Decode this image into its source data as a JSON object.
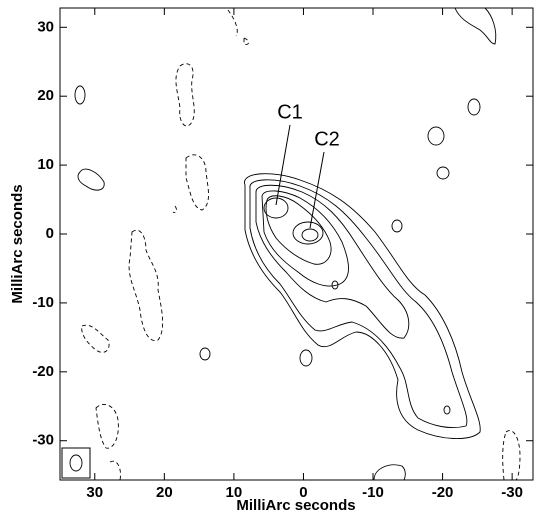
{
  "chart_data": {
    "type": "contour",
    "xlabel": "MilliArc seconds",
    "ylabel": "MilliArc seconds",
    "xlim": [
      35,
      -33
    ],
    "ylim": [
      -35.7,
      32.8
    ],
    "xticks": [
      30,
      20,
      10,
      0,
      -10,
      -20,
      -30
    ],
    "yticks": [
      30,
      20,
      10,
      0,
      -10,
      -20,
      -30
    ],
    "annotations": [
      "C1",
      "C2"
    ]
  }
}
